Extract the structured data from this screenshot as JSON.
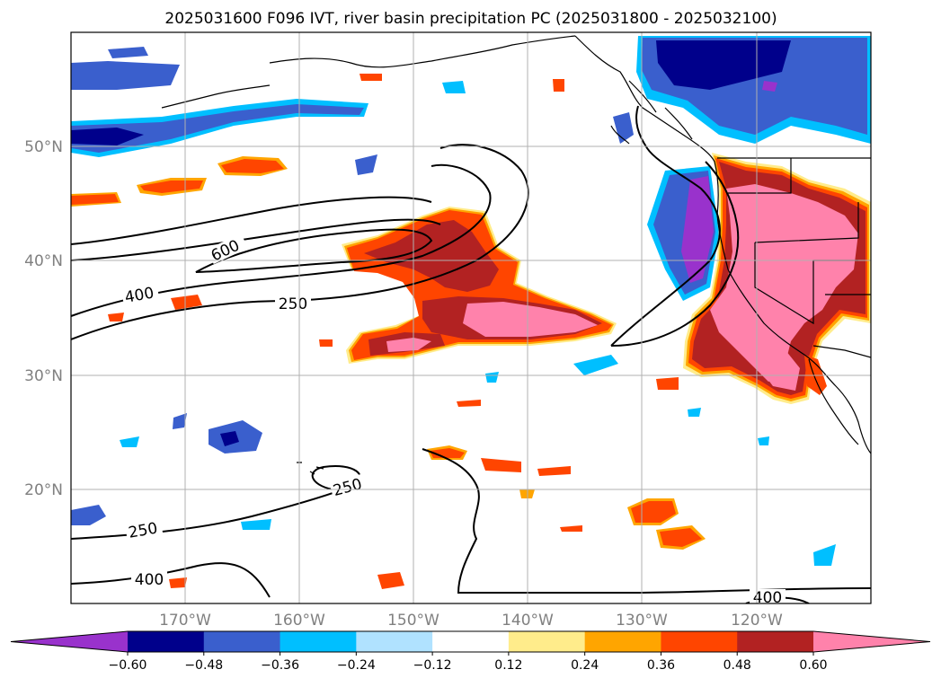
{
  "title": "2025031600 F096 IVT, river basin precipitation PC (2025031800 - 2025032100)",
  "map": {
    "extent": {
      "lon_min": -180,
      "lon_max": -110,
      "lat_min": 10,
      "lat_max": 60
    },
    "lon_ticks": [
      {
        "value": -170,
        "label": "170°W"
      },
      {
        "value": -160,
        "label": "160°W"
      },
      {
        "value": -150,
        "label": "150°W"
      },
      {
        "value": -140,
        "label": "140°W"
      },
      {
        "value": -130,
        "label": "130°W"
      },
      {
        "value": -120,
        "label": "120°W"
      }
    ],
    "lat_ticks": [
      {
        "value": 50,
        "label": "50°N"
      },
      {
        "value": 40,
        "label": "40°N"
      },
      {
        "value": 30,
        "label": "30°N"
      },
      {
        "value": 20,
        "label": "20°N"
      }
    ],
    "contour_labels": [
      "600",
      "400",
      "250",
      "250",
      "250",
      "400",
      "400"
    ]
  },
  "colorbar": {
    "levels": [
      -0.6,
      -0.48,
      -0.36,
      -0.24,
      -0.12,
      0.12,
      0.24,
      0.36,
      0.48,
      0.6
    ],
    "labels": [
      "-0.60",
      "-0.48",
      "-0.36",
      "-0.24",
      "-0.12",
      "0.12",
      "0.24",
      "0.36",
      "0.48",
      "0.60"
    ],
    "colors": [
      "#9932cc",
      "#00008b",
      "#3a5fcd",
      "#00bfff",
      "#b0e2ff",
      "#ffffff",
      "#ffec8b",
      "#ffa500",
      "#ff4500",
      "#b22222",
      "#ff82ab"
    ]
  }
}
